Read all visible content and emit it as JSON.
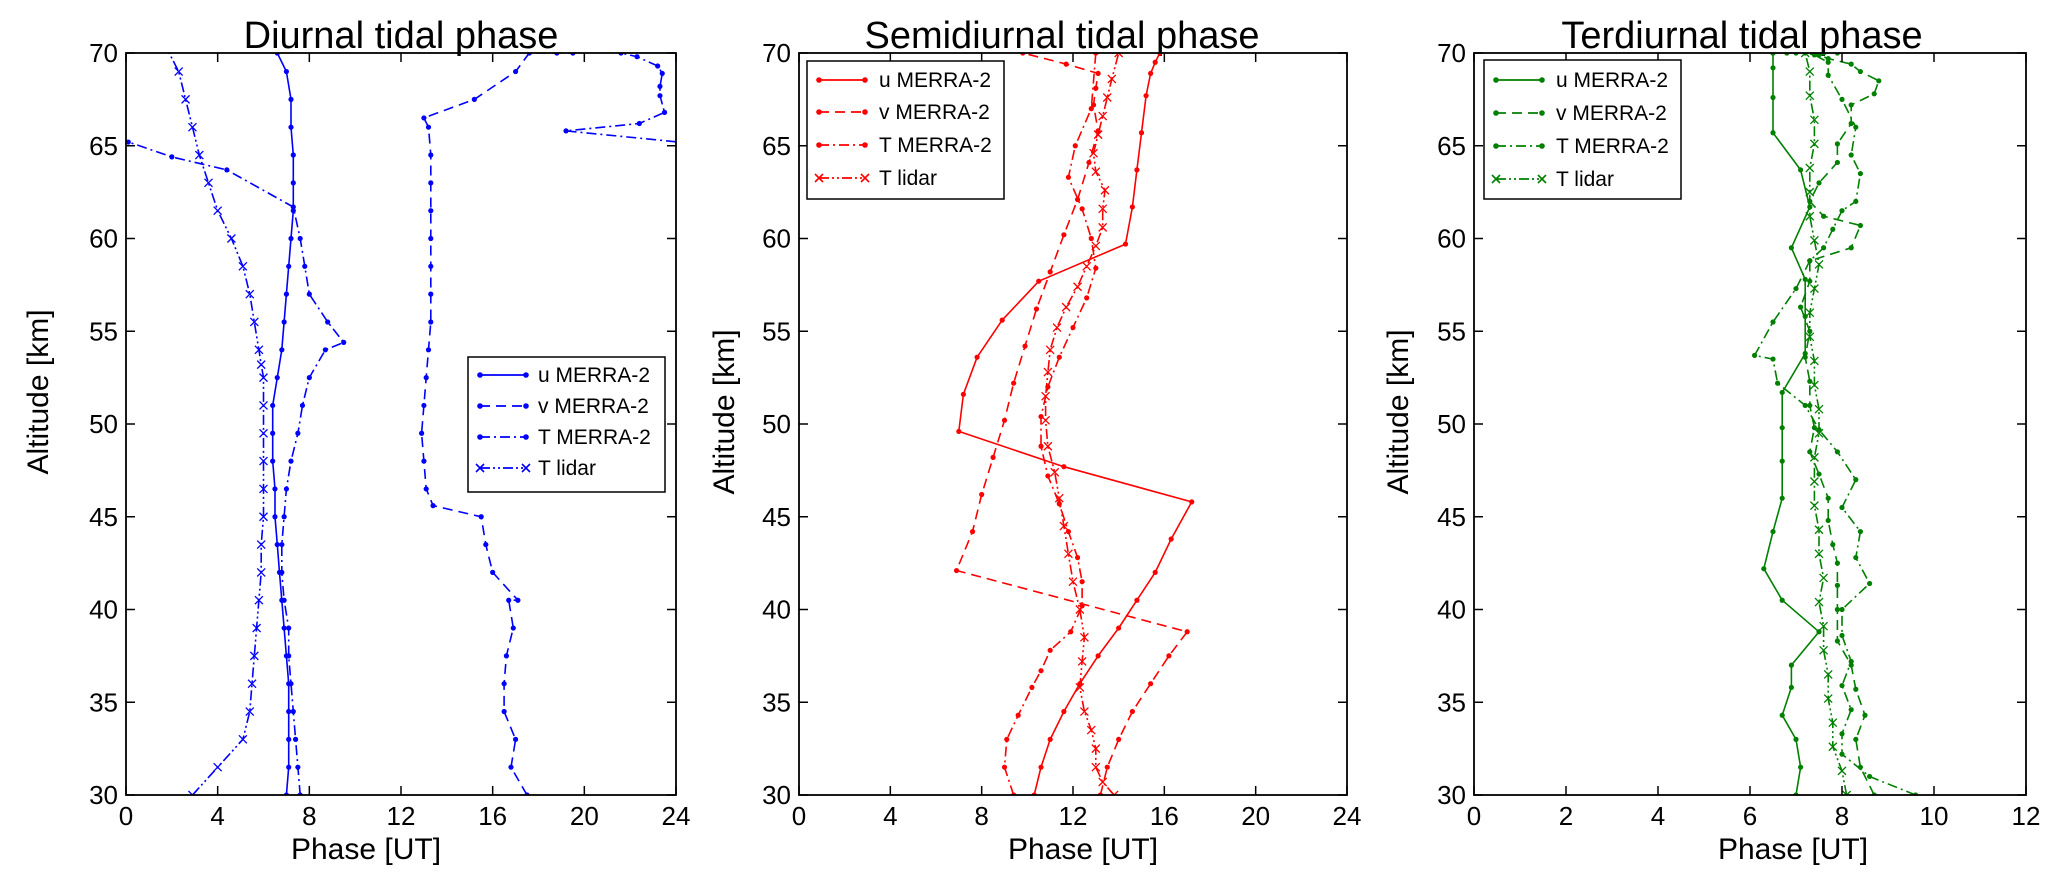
{
  "chart_data": [
    {
      "type": "line",
      "title": "Diurnal tidal phase",
      "xlabel": "Phase [UT]",
      "ylabel": "Altitude [km]",
      "xlim": [
        0,
        24
      ],
      "ylim": [
        30,
        70
      ],
      "xticks": [
        0,
        4,
        8,
        12,
        16,
        20,
        24
      ],
      "xtick_labels": [
        "0",
        "4",
        "8",
        "12",
        "16",
        "20",
        "24"
      ],
      "yticks": [
        30,
        35,
        40,
        45,
        50,
        55,
        60,
        65,
        70
      ],
      "ytick_labels": [
        "30",
        "35",
        "40",
        "45",
        "50",
        "55",
        "60",
        "65",
        "70"
      ],
      "color": "#0000ff",
      "legend_position": "center-right",
      "series": [
        {
          "name": "u MERRA-2",
          "style": "solid",
          "marker": "dot",
          "wrap": false,
          "x": [
            7.0,
            7.1,
            7.1,
            7.1,
            7.1,
            7.0,
            6.9,
            6.8,
            6.7,
            6.6,
            6.5,
            6.5,
            6.4,
            6.4,
            6.4,
            6.6,
            6.8,
            6.9,
            7.0,
            7.1,
            7.2,
            7.3,
            7.3,
            7.3,
            7.2,
            7.2,
            7.0,
            6.6
          ],
          "y": [
            30,
            31.5,
            33,
            34.5,
            36,
            37.5,
            39,
            40.5,
            42,
            43.5,
            45,
            46.5,
            48,
            49.5,
            51,
            52.5,
            54,
            55.5,
            57,
            58.5,
            60,
            61.5,
            63,
            64.5,
            66,
            67.5,
            69,
            70
          ]
        },
        {
          "name": "v MERRA-2",
          "style": "dashed",
          "marker": "dot",
          "wrap": true,
          "x": [
            17.5,
            16.8,
            17.0,
            16.5,
            16.5,
            16.6,
            16.9,
            16.7,
            17.1,
            16.0,
            15.7,
            15.5,
            13.4,
            13.1,
            13.0,
            12.9,
            13.0,
            13.1,
            13.2,
            13.3,
            13.3,
            13.3,
            13.3,
            13.3,
            13.3,
            13.3,
            13.2,
            13.0,
            15.2,
            17.0,
            17.6,
            18.8,
            19.5
          ],
          "y": [
            30,
            31.5,
            33,
            34.5,
            36,
            37.5,
            39,
            40.5,
            40.5,
            42,
            43.5,
            45,
            45.6,
            46.5,
            48,
            49.5,
            51,
            52.5,
            54,
            55.5,
            57,
            58.5,
            60,
            61.5,
            63,
            64.5,
            66,
            66.5,
            67.5,
            69,
            70,
            70,
            70
          ]
        },
        {
          "name": "T MERRA-2",
          "style": "dashdot",
          "marker": "dot",
          "wrap": true,
          "x": [
            7.6,
            7.5,
            7.4,
            7.3,
            7.2,
            7.1,
            7.1,
            6.9,
            6.8,
            6.8,
            6.9,
            7.0,
            7.2,
            7.5,
            7.7,
            8.0,
            8.7,
            9.5,
            8.8,
            8.0,
            7.8,
            7.6,
            7.3,
            4.4,
            2.0,
            0.1,
            19.2,
            22.4,
            23.5,
            23.3,
            23.3,
            23.4,
            23.2,
            22.3,
            21.6
          ],
          "y": [
            30,
            31.5,
            33,
            34.5,
            36,
            37.5,
            39,
            40.5,
            42,
            43.5,
            45,
            46.5,
            48,
            49.5,
            51,
            52.5,
            54,
            54.4,
            55.5,
            57,
            58.5,
            60,
            61.7,
            63.7,
            64.4,
            65.2,
            65.8,
            66.2,
            66.8,
            67.7,
            68.2,
            68.9,
            69.3,
            69.8,
            70
          ]
        },
        {
          "name": "T lidar",
          "style": "dashdotdot",
          "marker": "x",
          "wrap": true,
          "x": [
            2.9,
            4.0,
            5.1,
            5.4,
            5.5,
            5.6,
            5.7,
            5.8,
            5.9,
            5.9,
            6.0,
            6.0,
            6.0,
            6.0,
            6.0,
            6.0,
            5.9,
            5.8,
            5.6,
            5.4,
            5.1,
            4.6,
            4.0,
            3.6,
            3.2,
            2.9,
            2.6,
            2.3,
            1.8,
            1.2,
            0.6,
            0.1,
            23.8
          ],
          "y": [
            30,
            31.5,
            33,
            34.5,
            36,
            37.5,
            39,
            40.5,
            42,
            43.5,
            45,
            46.5,
            48,
            49.5,
            51,
            52.5,
            53.2,
            54,
            55.5,
            57,
            58.5,
            60,
            61.5,
            63,
            64.5,
            66,
            67.5,
            69,
            70.2,
            70.3,
            70.3,
            70.3,
            70.3
          ]
        }
      ]
    },
    {
      "type": "line",
      "title": "Semidiurnal tidal phase",
      "xlabel": "Phase [UT]",
      "ylabel": "Altitude [km]",
      "xlim": [
        0,
        24
      ],
      "ylim": [
        30,
        70
      ],
      "xticks": [
        0,
        4,
        8,
        12,
        16,
        20,
        24
      ],
      "xtick_labels": [
        "0",
        "4",
        "8",
        "12",
        "16",
        "20",
        "24"
      ],
      "yticks": [
        30,
        35,
        40,
        45,
        50,
        55,
        60,
        65,
        70
      ],
      "ytick_labels": [
        "30",
        "35",
        "40",
        "45",
        "50",
        "55",
        "60",
        "65",
        "70"
      ],
      "color": "#ff0000",
      "legend_position": "top-left",
      "series": [
        {
          "name": "u MERRA-2",
          "style": "solid",
          "marker": "dot",
          "wrap": false,
          "x": [
            10.3,
            10.6,
            11.0,
            11.6,
            12.3,
            13.1,
            14.0,
            14.8,
            15.6,
            16.3,
            17.2,
            11.6,
            7.0,
            7.2,
            7.8,
            8.9,
            10.5,
            14.3,
            14.6,
            14.8,
            15.0,
            15.2,
            15.4,
            15.6,
            15.8
          ],
          "y": [
            30,
            31.5,
            33,
            34.5,
            36,
            37.5,
            39,
            40.5,
            42,
            43.8,
            45.8,
            47.7,
            49.6,
            51.6,
            53.6,
            55.6,
            57.7,
            59.7,
            61.7,
            63.7,
            65.7,
            67.7,
            68.9,
            69.5,
            70
          ]
        },
        {
          "name": "v MERRA-2",
          "style": "dashed",
          "marker": "dot",
          "wrap": false,
          "x": [
            13.2,
            13.5,
            14.0,
            14.6,
            15.4,
            16.2,
            17.0,
            6.9,
            7.6,
            8.0,
            8.5,
            9.0,
            9.4,
            9.9,
            10.4,
            11.0,
            11.6,
            12.2,
            12.7,
            13.1,
            12.9,
            13.0,
            13.1,
            11.7,
            9.8
          ],
          "y": [
            30,
            31.5,
            33,
            34.5,
            36,
            37.5,
            38.8,
            42.1,
            44.2,
            46.2,
            48.2,
            50.2,
            52.2,
            54.2,
            56.2,
            58.2,
            60.2,
            62.1,
            64.1,
            65.8,
            67.2,
            68.1,
            68.9,
            69.4,
            70
          ]
        },
        {
          "name": "T MERRA-2",
          "style": "dashdot",
          "marker": "dot",
          "wrap": false,
          "x": [
            9.4,
            9.0,
            9.1,
            9.6,
            10.2,
            10.6,
            11.0,
            11.9,
            12.4,
            12.4,
            12.2,
            11.8,
            11.4,
            10.9,
            10.6,
            10.6,
            10.9,
            11.4,
            12.0,
            12.6,
            13.0,
            12.8,
            12.4,
            11.8,
            12.1,
            12.8,
            13.0
          ],
          "y": [
            30,
            31.5,
            33,
            34.3,
            35.8,
            36.7,
            37.8,
            38.8,
            40.2,
            41.5,
            42.8,
            44.2,
            45.7,
            47.2,
            48.8,
            50.4,
            52.0,
            53.6,
            55.2,
            56.8,
            58.4,
            60.0,
            61.6,
            63.3,
            65.0,
            67.0,
            70
          ]
        },
        {
          "name": "T lidar",
          "style": "dashdotdot",
          "marker": "x",
          "wrap": false,
          "x": [
            13.8,
            13.3,
            13.0,
            13.0,
            12.8,
            12.5,
            12.3,
            12.4,
            12.5,
            12.3,
            12.0,
            11.8,
            11.6,
            11.4,
            11.2,
            10.9,
            10.8,
            10.8,
            10.9,
            11.0,
            11.3,
            11.7,
            12.2,
            12.6,
            13.0,
            13.3,
            13.3,
            13.4,
            13.0,
            12.9,
            13.1,
            13.3,
            13.5,
            13.7,
            14.0
          ],
          "y": [
            30,
            30.7,
            31.5,
            32.5,
            33.5,
            34.5,
            35.8,
            37.2,
            38.5,
            40.0,
            41.5,
            43.0,
            44.5,
            46.0,
            47.4,
            48.8,
            50.2,
            51.5,
            52.8,
            54.0,
            55.2,
            56.3,
            57.4,
            58.5,
            59.6,
            60.6,
            61.6,
            62.6,
            63.6,
            64.6,
            65.6,
            66.6,
            67.6,
            68.6,
            70
          ]
        }
      ]
    },
    {
      "type": "line",
      "title": "Terdiurnal tidal phase",
      "xlabel": "Phase [UT]",
      "ylabel": "Altitude [km]",
      "xlim": [
        0,
        12
      ],
      "ylim": [
        30,
        70
      ],
      "xticks": [
        0,
        2,
        4,
        6,
        8,
        10,
        12
      ],
      "xtick_labels": [
        "0",
        "2",
        "4",
        "6",
        "8",
        "10",
        "12"
      ],
      "yticks": [
        30,
        35,
        40,
        45,
        50,
        55,
        60,
        65,
        70
      ],
      "ytick_labels": [
        "30",
        "35",
        "40",
        "45",
        "50",
        "55",
        "60",
        "65",
        "70"
      ],
      "color": "#008000",
      "legend_position": "top-left",
      "series": [
        {
          "name": "u MERRA-2",
          "style": "solid",
          "marker": "dot",
          "wrap": false,
          "x": [
            7.0,
            7.1,
            7.0,
            6.7,
            6.9,
            6.9,
            7.5,
            6.7,
            6.3,
            6.5,
            6.7,
            6.7,
            6.7,
            6.7,
            7.2,
            7.2,
            7.2,
            6.9,
            7.3,
            7.1,
            6.5,
            6.5,
            6.5,
            6.5,
            6.5,
            6.8,
            7.0
          ],
          "y": [
            30,
            31.5,
            33,
            34.3,
            35.8,
            37,
            38.8,
            40.5,
            42.2,
            44.2,
            46,
            48,
            49.8,
            51.7,
            53.8,
            55.8,
            57.8,
            59.5,
            61.7,
            63.7,
            65.7,
            67.6,
            69.2,
            70,
            70,
            70,
            70
          ]
        },
        {
          "name": "v MERRA-2",
          "style": "dashed",
          "marker": "dot",
          "wrap": false,
          "x": [
            8.7,
            8.4,
            8.3,
            8.5,
            8.3,
            8.2,
            7.9,
            7.9,
            7.9,
            7.9,
            7.8,
            7.7,
            7.7,
            7.5,
            7.3,
            7.4,
            7.3,
            7.3,
            7.2,
            7.3,
            7.1,
            7.3,
            7.3,
            8.2,
            8.4,
            7.6,
            7.3,
            7.5,
            7.9,
            7.9,
            8.2,
            8.2,
            8.7,
            8.8,
            8.4,
            8.2,
            7.7,
            7.5,
            7.6,
            7.9
          ],
          "y": [
            30,
            31.5,
            33,
            34.3,
            35.7,
            37,
            38.3,
            40.0,
            41.3,
            42.5,
            43.5,
            44.8,
            46,
            47.3,
            48.5,
            49.8,
            51,
            52.3,
            53.6,
            55,
            56.3,
            57.7,
            58.8,
            59.5,
            60.7,
            61.2,
            62,
            63,
            64.1,
            65.1,
            66.2,
            67.2,
            67.8,
            68.5,
            69,
            69.4,
            69.7,
            69.9,
            70,
            70
          ]
        },
        {
          "name": "T MERRA-2",
          "style": "dashdot",
          "marker": "dot",
          "wrap": false,
          "x": [
            9.6,
            8.6,
            8.0,
            8.0,
            8.2,
            8.0,
            8.2,
            8.0,
            8.0,
            8.6,
            8.3,
            8.4,
            8.0,
            8.3,
            7.9,
            7.5,
            7.2,
            6.6,
            6.5,
            6.1,
            6.5,
            7.0,
            7.3,
            7.6,
            7.8,
            8.0,
            8.3,
            8.4,
            8.2,
            8.3,
            8.0,
            7.7,
            7.7,
            7.4,
            7.2
          ],
          "y": [
            30,
            31,
            32.2,
            33.3,
            34.6,
            35.9,
            37.2,
            38.6,
            40,
            41.4,
            42.8,
            44.2,
            45.5,
            47,
            48.5,
            49.7,
            51,
            52.2,
            53.5,
            53.7,
            55.5,
            57.3,
            58.8,
            59.5,
            60.5,
            61.5,
            62,
            63.5,
            64.5,
            66,
            67.5,
            68.8,
            69.5,
            69.9,
            70
          ]
        },
        {
          "name": "T lidar",
          "style": "dashdotdot",
          "marker": "x",
          "wrap": false,
          "x": [
            8.1,
            8.0,
            7.8,
            7.8,
            7.7,
            7.7,
            7.6,
            7.6,
            7.5,
            7.6,
            7.5,
            7.5,
            7.4,
            7.4,
            7.4,
            7.5,
            7.5,
            7.4,
            7.4,
            7.3,
            7.3,
            7.4,
            7.5,
            7.4,
            7.3,
            7.3,
            7.3,
            7.4,
            7.4,
            7.3,
            7.3,
            7.2
          ],
          "y": [
            30,
            31.3,
            32.6,
            33.9,
            35.2,
            36.5,
            37.8,
            39.1,
            40.4,
            41.7,
            43,
            44.3,
            45.6,
            46.9,
            48.2,
            49.5,
            50.8,
            52.1,
            53.4,
            54.7,
            56,
            57.3,
            58.6,
            59.9,
            61.2,
            62.5,
            63.8,
            65.1,
            66.4,
            67.7,
            69,
            70
          ]
        }
      ]
    }
  ]
}
